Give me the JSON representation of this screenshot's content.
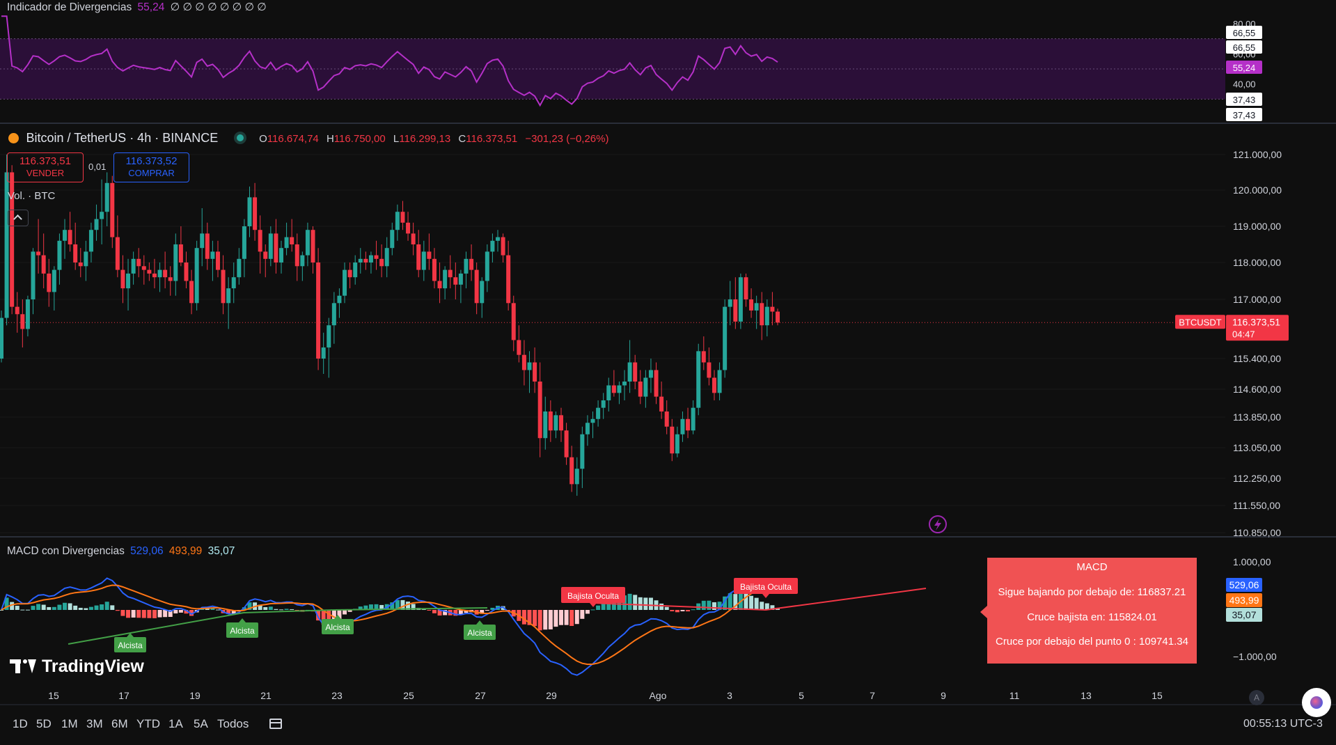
{
  "colors": {
    "bg": "#0f0f0f",
    "up": "#26a69a",
    "down": "#f23645",
    "rsi_line": "#b530c8",
    "rsi_band": "#2b0f38",
    "macd_line": "#2962ff",
    "signal_line": "#ff7616",
    "tooltip_bg": "#f05253",
    "label_bear": "#f23645",
    "label_bull": "#43a047"
  },
  "rsi_panel": {
    "title": "Indicador de Divergencias",
    "value": "55,24",
    "placeholders": "∅ ∅ ∅ ∅ ∅ ∅ ∅ ∅",
    "axis_labels": [
      "80,00",
      "60,00",
      "40,00"
    ],
    "tags": [
      "66,55",
      "66,55",
      "55,24",
      "37,43",
      "37,43"
    ]
  },
  "symbol": {
    "name": "Bitcoin / TetherUS · 4h · BINANCE",
    "o_label": "O",
    "o_value": "116.674,74",
    "h_label": "H",
    "h_value": "116.750,00",
    "l_label": "L",
    "l_value": "116.299,13",
    "c_label": "C",
    "c_value": "116.373,51",
    "change": "−301,23 (−0,26%)",
    "sell_price": "116.373,51",
    "sell_label": "VENDER",
    "spread": "0,01",
    "buy_price": "116.373,52",
    "buy_label": "COMPRAR",
    "volume_label": "Vol. · BTC",
    "ticker_tag": "BTCUSDT",
    "last_price": "116.373,51",
    "countdown": "04:47"
  },
  "price_axis_labels": [
    "121.000,00",
    "120.000,00",
    "119.000,00",
    "118.000,00",
    "117.000,00",
    "115.400,00",
    "114.600,00",
    "113.850,00",
    "113.050,00",
    "112.250,00",
    "111.550,00",
    "110.850,00"
  ],
  "macd_panel": {
    "title": "MACD con Divergencias",
    "macd": "529,06",
    "signal": "493,99",
    "hist": "35,07",
    "axis_labels": [
      "1.000,00",
      "−1.000,00"
    ],
    "labels_bull": [
      "Alcista",
      "Alcista",
      "Alcista",
      "Alcista"
    ],
    "labels_bear": [
      "Bajista Oculta",
      "Bajista Oculta"
    ]
  },
  "tooltip": {
    "title": "MACD",
    "line1": "Sigue bajando por debajo de: 116837.21",
    "line2": "Cruce bajista en: 115824.01",
    "line3": "Cruce por debajo del punto 0 : 109741.34"
  },
  "time_axis_labels": [
    "15",
    "17",
    "19",
    "21",
    "23",
    "25",
    "27",
    "29",
    "Ago",
    "3",
    "5",
    "7",
    "9",
    "11",
    "13",
    "15"
  ],
  "timeframes": [
    "1D",
    "5D",
    "1M",
    "3M",
    "6M",
    "YTD",
    "1A",
    "5A",
    "Todos"
  ],
  "clock": "00:55:13 UTC-3",
  "brand": "TradingView",
  "auto_label": "A",
  "chart_data": {
    "type": "candlestick",
    "timeframe": "4h",
    "candles": [
      [
        115400,
        116700,
        115300,
        116500
      ],
      [
        116500,
        121000,
        116300,
        120500
      ],
      [
        120500,
        120700,
        116600,
        116800
      ],
      [
        116800,
        117200,
        116100,
        116600
      ],
      [
        116600,
        117000,
        115700,
        116200
      ],
      [
        116200,
        117100,
        116000,
        117000
      ],
      [
        117000,
        118400,
        116600,
        118300
      ],
      [
        118300,
        119200,
        117700,
        118200
      ],
      [
        118200,
        118800,
        117300,
        117700
      ],
      [
        117700,
        118100,
        116800,
        117200
      ],
      [
        117200,
        117900,
        116700,
        117800
      ],
      [
        117800,
        118800,
        117400,
        118600
      ],
      [
        118600,
        119200,
        118100,
        118900
      ],
      [
        118900,
        119400,
        118300,
        118500
      ],
      [
        118500,
        119100,
        117800,
        118000
      ],
      [
        118000,
        118400,
        117600,
        117900
      ],
      [
        117900,
        118600,
        117500,
        118300
      ],
      [
        118300,
        119100,
        118000,
        118900
      ],
      [
        118900,
        119600,
        118600,
        119200
      ],
      [
        119200,
        120300,
        118500,
        119400
      ],
      [
        119400,
        120500,
        119000,
        120200
      ],
      [
        120200,
        120400,
        118400,
        118700
      ],
      [
        118700,
        119300,
        117600,
        117800
      ],
      [
        117800,
        118200,
        116900,
        117300
      ],
      [
        117300,
        118100,
        116700,
        117700
      ],
      [
        117700,
        118300,
        117400,
        118100
      ],
      [
        118100,
        118400,
        117600,
        117900
      ],
      [
        117900,
        118200,
        117400,
        117800
      ],
      [
        117800,
        118000,
        117500,
        117700
      ],
      [
        117700,
        118100,
        117300,
        117600
      ],
      [
        117600,
        118000,
        117200,
        117800
      ],
      [
        117800,
        118300,
        117300,
        117600
      ],
      [
        117600,
        117900,
        117100,
        117500
      ],
      [
        117500,
        118800,
        117100,
        118500
      ],
      [
        118500,
        119000,
        117900,
        118000
      ],
      [
        118000,
        118300,
        117300,
        117500
      ],
      [
        117500,
        117800,
        116600,
        116900
      ],
      [
        116900,
        118600,
        116700,
        118400
      ],
      [
        118400,
        119500,
        117900,
        118800
      ],
      [
        118800,
        119100,
        117800,
        118100
      ],
      [
        118100,
        118600,
        117500,
        118300
      ],
      [
        118300,
        118600,
        117600,
        117800
      ],
      [
        117800,
        118200,
        116600,
        116900
      ],
      [
        116900,
        117600,
        116200,
        117300
      ],
      [
        117300,
        118000,
        116900,
        117600
      ],
      [
        117600,
        118400,
        117400,
        118100
      ],
      [
        118100,
        119200,
        117600,
        119000
      ],
      [
        119000,
        120100,
        118700,
        119800
      ],
      [
        119800,
        120200,
        118600,
        118900
      ],
      [
        118900,
        119300,
        117700,
        118300
      ],
      [
        118300,
        118500,
        117600,
        118100
      ],
      [
        118100,
        119000,
        117900,
        118800
      ],
      [
        118800,
        119200,
        117700,
        118000
      ],
      [
        118000,
        118600,
        117700,
        118400
      ],
      [
        118400,
        119100,
        118200,
        118700
      ],
      [
        118700,
        119200,
        118300,
        118500
      ],
      [
        118500,
        118800,
        117500,
        117900
      ],
      [
        117900,
        118300,
        117500,
        118200
      ],
      [
        118200,
        119100,
        117900,
        118900
      ],
      [
        118900,
        119000,
        117700,
        118000
      ],
      [
        118000,
        118400,
        115100,
        115400
      ],
      [
        115400,
        116100,
        115000,
        115700
      ],
      [
        115700,
        116500,
        114900,
        116300
      ],
      [
        116300,
        117200,
        115800,
        116900
      ],
      [
        116900,
        117300,
        116500,
        117100
      ],
      [
        117100,
        118000,
        116900,
        117800
      ],
      [
        117800,
        118000,
        117300,
        117600
      ],
      [
        117600,
        118200,
        117400,
        118000
      ],
      [
        118000,
        118400,
        117700,
        118100
      ],
      [
        118100,
        118300,
        117800,
        118000
      ],
      [
        118000,
        118300,
        117700,
        118200
      ],
      [
        118200,
        118600,
        117800,
        118100
      ],
      [
        118100,
        118500,
        117600,
        117900
      ],
      [
        117900,
        118700,
        117600,
        118400
      ],
      [
        118400,
        119100,
        118200,
        118900
      ],
      [
        118900,
        119600,
        118600,
        119400
      ],
      [
        119400,
        119700,
        118900,
        119100
      ],
      [
        119100,
        119400,
        118600,
        118800
      ],
      [
        118800,
        119100,
        118200,
        118500
      ],
      [
        118500,
        118900,
        117600,
        117800
      ],
      [
        117800,
        118600,
        117500,
        118300
      ],
      [
        118300,
        118800,
        117800,
        118100
      ],
      [
        118100,
        118400,
        117300,
        117500
      ],
      [
        117500,
        118000,
        116900,
        117300
      ],
      [
        117300,
        117900,
        117000,
        117800
      ],
      [
        117800,
        118200,
        117300,
        117600
      ],
      [
        117600,
        118000,
        117000,
        117400
      ],
      [
        117400,
        117800,
        116900,
        117700
      ],
      [
        117700,
        118300,
        117300,
        118100
      ],
      [
        118100,
        118500,
        117500,
        117800
      ],
      [
        117800,
        118000,
        116600,
        116900
      ],
      [
        116900,
        117600,
        116500,
        117500
      ],
      [
        117500,
        118500,
        117200,
        118300
      ],
      [
        118300,
        118800,
        118000,
        118600
      ],
      [
        118600,
        118900,
        118300,
        118700
      ],
      [
        118700,
        118800,
        118000,
        118200
      ],
      [
        118200,
        118600,
        116700,
        116900
      ],
      [
        116900,
        117100,
        115600,
        115900
      ],
      [
        115900,
        116300,
        115300,
        115500
      ],
      [
        115500,
        115900,
        114700,
        115100
      ],
      [
        115100,
        115600,
        114500,
        115300
      ],
      [
        115300,
        115700,
        114500,
        114800
      ],
      [
        114800,
        115300,
        112800,
        113300
      ],
      [
        113300,
        114400,
        113000,
        114000
      ],
      [
        114000,
        114300,
        113200,
        113500
      ],
      [
        113500,
        114000,
        113300,
        113900
      ],
      [
        113900,
        114100,
        113200,
        113500
      ],
      [
        113500,
        113700,
        112600,
        112800
      ],
      [
        112800,
        113100,
        111900,
        112100
      ],
      [
        112100,
        112800,
        111800,
        112500
      ],
      [
        112500,
        113600,
        112000,
        113400
      ],
      [
        113400,
        113900,
        113100,
        113700
      ],
      [
        113700,
        114000,
        113300,
        113800
      ],
      [
        113800,
        114300,
        113600,
        114100
      ],
      [
        114100,
        114500,
        113800,
        114300
      ],
      [
        114300,
        114900,
        114000,
        114700
      ],
      [
        114700,
        115100,
        114400,
        114500
      ],
      [
        114500,
        114800,
        114200,
        114700
      ],
      [
        114700,
        115100,
        114300,
        114800
      ],
      [
        114800,
        115900,
        114500,
        115300
      ],
      [
        115300,
        115500,
        114600,
        114800
      ],
      [
        114800,
        115100,
        114200,
        114400
      ],
      [
        114400,
        115100,
        114100,
        114900
      ],
      [
        114900,
        115400,
        114500,
        115100
      ],
      [
        115100,
        115300,
        114200,
        114400
      ],
      [
        114400,
        114800,
        113800,
        114000
      ],
      [
        114000,
        114300,
        113400,
        113600
      ],
      [
        113600,
        113800,
        112700,
        112900
      ],
      [
        112900,
        113600,
        112800,
        113400
      ],
      [
        113400,
        114000,
        113200,
        113800
      ],
      [
        113800,
        114100,
        113300,
        113500
      ],
      [
        113500,
        114300,
        113400,
        114100
      ],
      [
        114100,
        115800,
        113900,
        115600
      ],
      [
        115600,
        116000,
        115100,
        115300
      ],
      [
        115300,
        115700,
        114700,
        114900
      ],
      [
        114900,
        115100,
        114300,
        114500
      ],
      [
        114500,
        115300,
        114300,
        115100
      ],
      [
        115100,
        117000,
        114900,
        116800
      ],
      [
        116800,
        117500,
        116300,
        117000
      ],
      [
        117000,
        117600,
        116200,
        116400
      ],
      [
        116400,
        117700,
        116200,
        117600
      ],
      [
        117600,
        117700,
        116800,
        117000
      ],
      [
        117000,
        117300,
        116500,
        116700
      ],
      [
        116700,
        117100,
        116200,
        116900
      ],
      [
        116900,
        117200,
        115900,
        116300
      ],
      [
        116300,
        117000,
        116000,
        116800
      ],
      [
        116800,
        117200,
        116300,
        116670
      ],
      [
        116670,
        116750,
        116299,
        116373
      ]
    ]
  }
}
